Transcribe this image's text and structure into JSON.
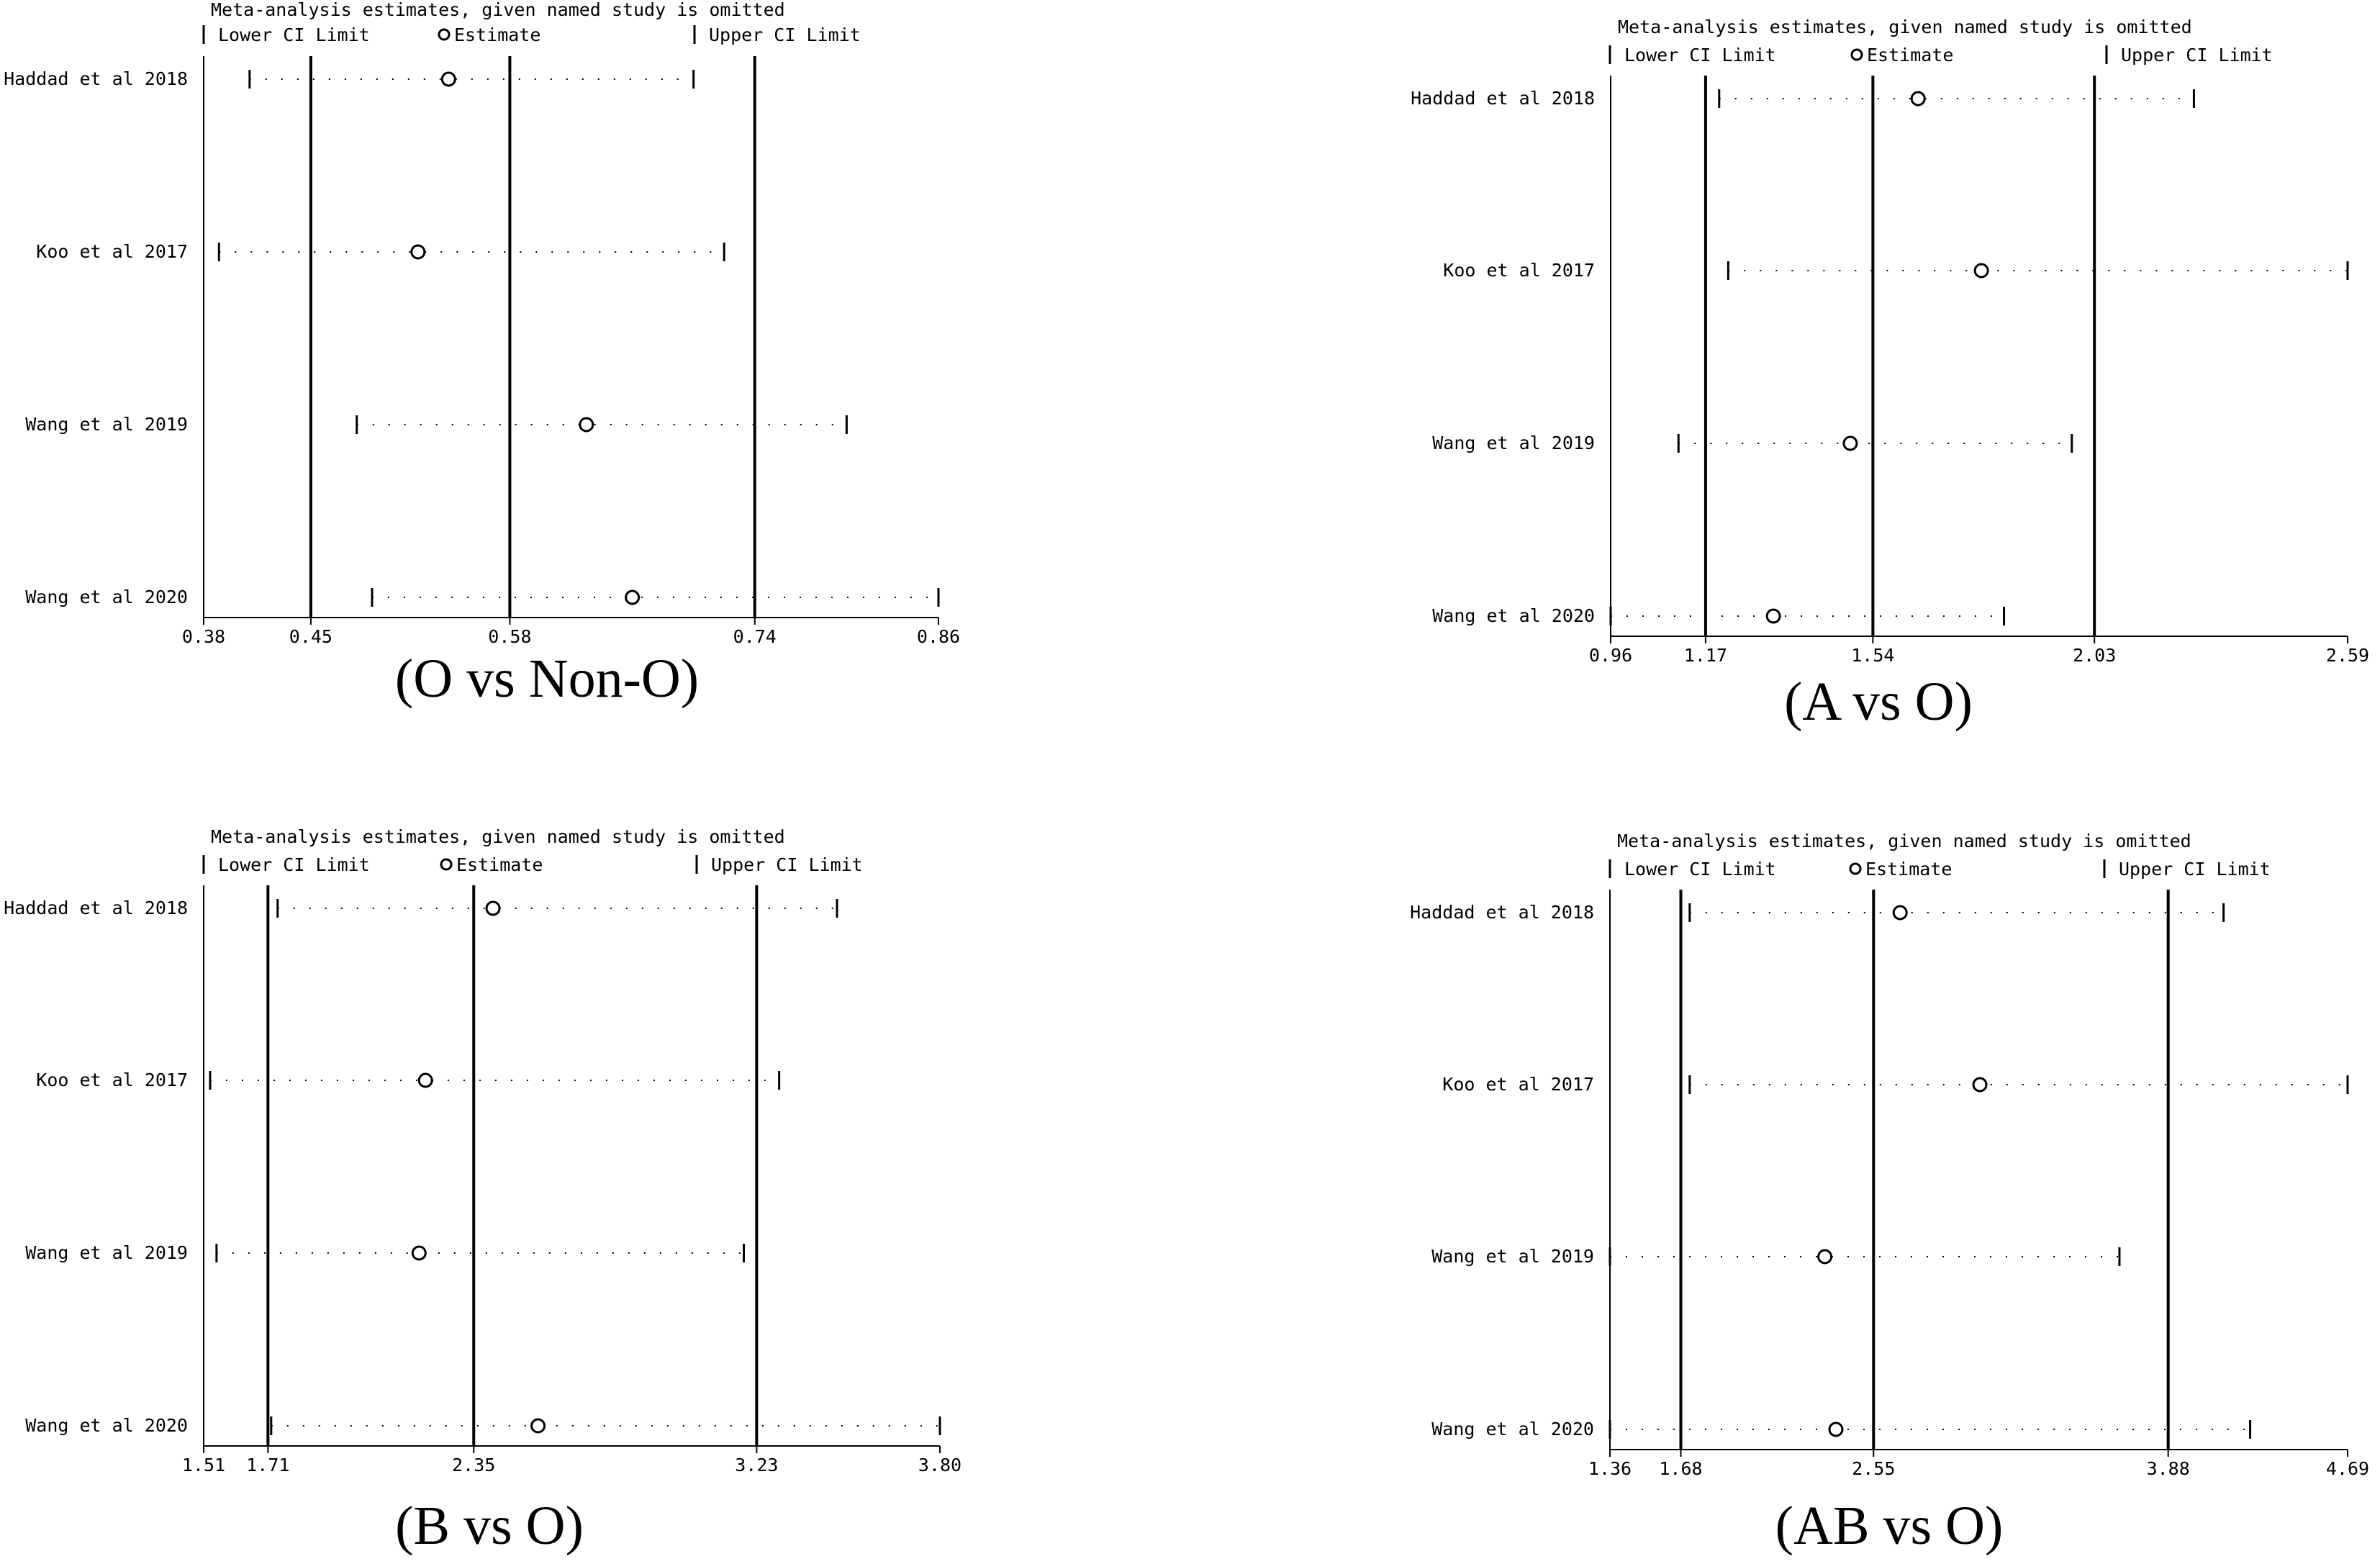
{
  "legend": {
    "header": "Meta-analysis estimates, given named study is omitted",
    "lower": "Lower CI Limit",
    "estimate": "Estimate",
    "upper": "Upper CI Limit"
  },
  "chart_data": [
    {
      "type": "forest",
      "title": "(O vs Non-O)",
      "studies": [
        "Haddad et al 2018",
        "Koo et al 2017",
        "Wang et al 2019",
        "Wang et al 2020"
      ],
      "xlim": [
        0.38,
        0.86
      ],
      "ticks": [
        0.38,
        0.45,
        0.58,
        0.74,
        0.86
      ],
      "tick_labels": [
        "0.38",
        "0.45",
        "0.58",
        "0.74",
        "0.86"
      ],
      "reference_lines": {
        "lower": 0.45,
        "estimate": 0.58,
        "upper": 0.74
      },
      "lower": [
        0.41,
        0.39,
        0.48,
        0.49
      ],
      "estimate": [
        0.54,
        0.52,
        0.63,
        0.66
      ],
      "upper": [
        0.7,
        0.72,
        0.8,
        0.86
      ]
    },
    {
      "type": "forest",
      "title": "(A vs O)",
      "studies": [
        "Haddad et al 2018",
        "Koo et al 2017",
        "Wang et al 2019",
        "Wang et al 2020"
      ],
      "xlim": [
        0.96,
        2.59
      ],
      "ticks": [
        0.96,
        1.17,
        1.54,
        2.03,
        2.59
      ],
      "tick_labels": [
        "0.96",
        "1.17",
        "1.54",
        "2.03",
        "2.59"
      ],
      "reference_lines": {
        "lower": 1.17,
        "estimate": 1.54,
        "upper": 2.03
      },
      "lower": [
        1.2,
        1.22,
        1.11,
        0.96
      ],
      "estimate": [
        1.64,
        1.78,
        1.49,
        1.32
      ],
      "upper": [
        2.25,
        2.59,
        1.98,
        1.83
      ]
    },
    {
      "type": "forest",
      "title": "(B vs O)",
      "studies": [
        "Haddad et al 2018",
        "Koo et al 2017",
        "Wang et al 2019",
        "Wang et al 2020"
      ],
      "xlim": [
        1.51,
        3.8
      ],
      "ticks": [
        1.51,
        1.71,
        2.35,
        3.23,
        3.8
      ],
      "tick_labels": [
        "1.51",
        "1.71",
        "2.35",
        "3.23",
        "3.80"
      ],
      "reference_lines": {
        "lower": 1.71,
        "estimate": 2.35,
        "upper": 3.23
      },
      "lower": [
        1.74,
        1.53,
        1.55,
        1.72
      ],
      "estimate": [
        2.41,
        2.2,
        2.18,
        2.55
      ],
      "upper": [
        3.48,
        3.3,
        3.19,
        3.8
      ]
    },
    {
      "type": "forest",
      "title": "(AB vs O)",
      "studies": [
        "Haddad et al 2018",
        "Koo et al 2017",
        "Wang et al 2019",
        "Wang et al 2020"
      ],
      "xlim": [
        1.36,
        4.69
      ],
      "ticks": [
        1.36,
        1.68,
        2.55,
        3.88,
        4.69
      ],
      "tick_labels": [
        "1.36",
        "1.68",
        "2.55",
        "3.88",
        "4.69"
      ],
      "reference_lines": {
        "lower": 1.68,
        "estimate": 2.55,
        "upper": 3.88
      },
      "lower": [
        1.72,
        1.72,
        1.36,
        1.36
      ],
      "estimate": [
        2.67,
        3.03,
        2.33,
        2.38
      ],
      "upper": [
        4.13,
        4.69,
        3.66,
        4.25
      ]
    }
  ]
}
